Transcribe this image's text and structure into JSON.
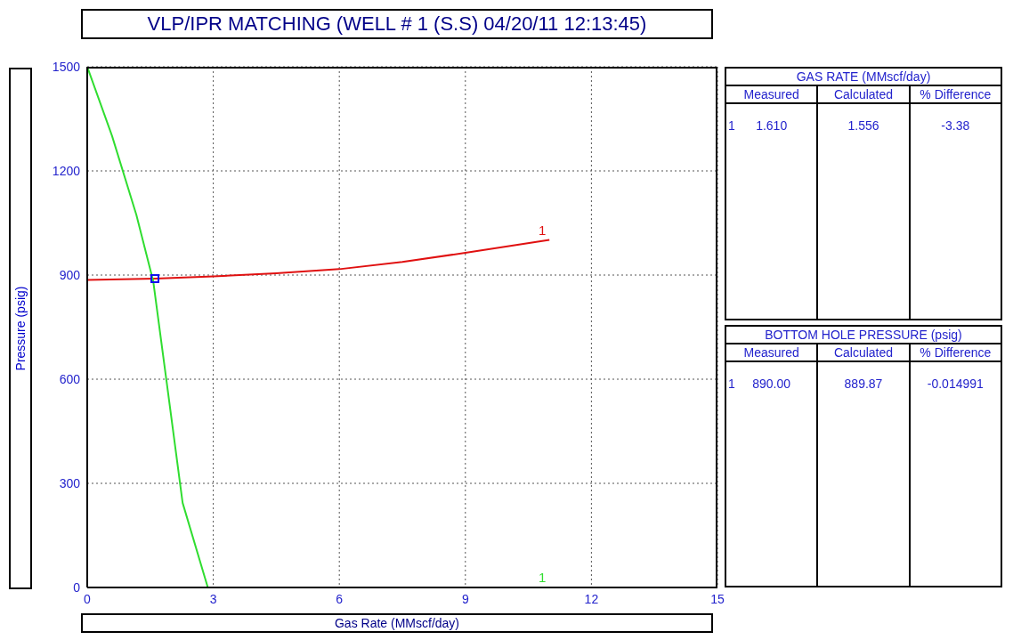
{
  "chart_data": [
    {
      "type": "line",
      "title": "VLP/IPR MATCHING (WELL # 1 (S.S) 04/20/11 12:13:45)",
      "xlabel": "Gas Rate  (MMscf/day)",
      "ylabel": "Pressure  (psig)",
      "xlim": [
        0,
        15
      ],
      "xticks": [
        0,
        3,
        6,
        9,
        12,
        15
      ],
      "ylim": [
        0,
        1500
      ],
      "yticks": [
        0,
        300,
        600,
        900,
        1200,
        1500
      ],
      "grid": true,
      "line_style": "solid",
      "series": [
        {
          "name": "1",
          "color": "#e01010",
          "x": [
            0,
            1.61,
            3,
            4.5,
            6,
            7.5,
            9,
            11
          ],
          "values": [
            886,
            890,
            896,
            905,
            917,
            938,
            964,
            1001
          ]
        },
        {
          "name": "1",
          "color": "#30dd30",
          "x": [
            0,
            0.59,
            1.17,
            1.57,
            1.89,
            2.27,
            2.87,
            11
          ],
          "values": [
            1500,
            1301,
            1073,
            883,
            592,
            244,
            0,
            0
          ]
        },
        {
          "type": "scatter",
          "color": "#1010ee",
          "marker": "square",
          "x": [
            1.61
          ],
          "values": [
            890
          ]
        }
      ]
    },
    {
      "type": "other",
      "title": "GAS RATE   (MMscf/day)",
      "categories": [
        "Measured",
        "Calculated",
        "% Difference"
      ],
      "annotations": [
        "1",
        "1.610",
        "1.556",
        "-3.38"
      ]
    },
    {
      "type": "other",
      "title": "BOTTOM HOLE PRESSURE   (psig)",
      "categories": [
        "Measured",
        "Calculated",
        "% Difference"
      ],
      "annotations": [
        "1",
        "890.00",
        "889.87",
        "-0.014991"
      ]
    }
  ]
}
